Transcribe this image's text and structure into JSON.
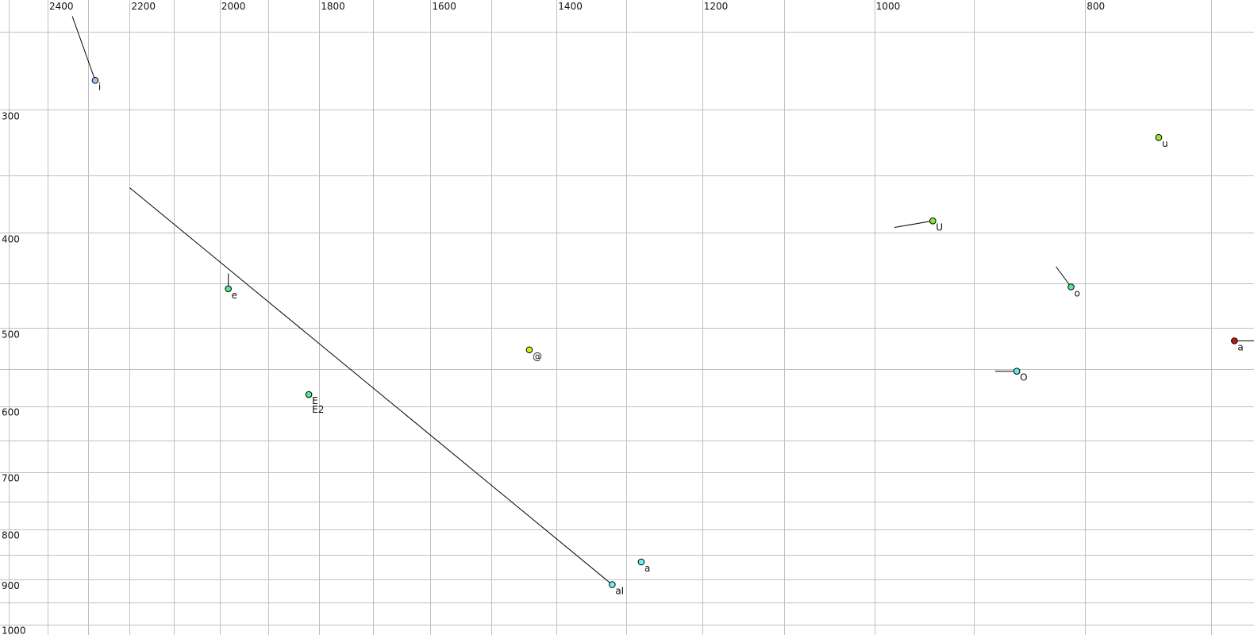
{
  "chart_data": {
    "type": "scatter",
    "title": "",
    "xlabel": "",
    "ylabel": "",
    "x_scale": "log",
    "y_scale": "log",
    "x_reversed": true,
    "xlim": [
      2524,
      669
    ],
    "ylim": [
      232,
      1025
    ],
    "x_axis_position": "top",
    "grid": true,
    "x_gridlines": [
      700,
      800,
      900,
      1000,
      1100,
      1200,
      1300,
      1400,
      1500,
      1600,
      1700,
      1800,
      1900,
      2000,
      2100,
      2200,
      2300,
      2400,
      2500
    ],
    "x_tick_labels": [
      "800",
      "1000",
      "1200",
      "1400",
      "1600",
      "1800",
      "2000",
      "2200",
      "2400"
    ],
    "y_gridlines": [
      250,
      300,
      350,
      400,
      450,
      500,
      550,
      600,
      650,
      700,
      750,
      800,
      850,
      900,
      950,
      1000
    ],
    "y_tick_labels": [
      "300",
      "400",
      "500",
      "600",
      "700",
      "800",
      "900",
      "1000"
    ],
    "points": [
      {
        "label": "i",
        "x": 2282,
        "y": 280,
        "color": "#9cc4f0",
        "trail": [
          2338,
          241
        ]
      },
      {
        "label": "e",
        "x": 1982,
        "y": 456,
        "color": "#50e890",
        "trail": [
          1982,
          440
        ]
      },
      {
        "label": "E\nE2",
        "x": 1820,
        "y": 584,
        "color": "#50e890"
      },
      {
        "label": "@",
        "x": 1441,
        "y": 526,
        "color": "#d8f000"
      },
      {
        "label": "U",
        "x": 940,
        "y": 389,
        "color": "#80f020",
        "trail": [
          979,
          395
        ]
      },
      {
        "label": "u",
        "x": 740,
        "y": 320,
        "color": "#90f030"
      },
      {
        "label": "o",
        "x": 812,
        "y": 454,
        "color": "#50e890",
        "trail": [
          825,
          433
        ]
      },
      {
        "label": "O",
        "x": 860,
        "y": 553,
        "color": "#60e8e0",
        "trail": [
          880,
          553
        ]
      },
      {
        "label": "a",
        "x": 683,
        "y": 515,
        "color": "#d01010",
        "trail": [
          660,
          515
        ]
      },
      {
        "label": "a",
        "x": 1280,
        "y": 864,
        "color": "#70f0f0"
      },
      {
        "label": "aI",
        "x": 1320,
        "y": 911,
        "color": "#70f0f0",
        "trail": [
          2200,
          360
        ]
      }
    ]
  }
}
